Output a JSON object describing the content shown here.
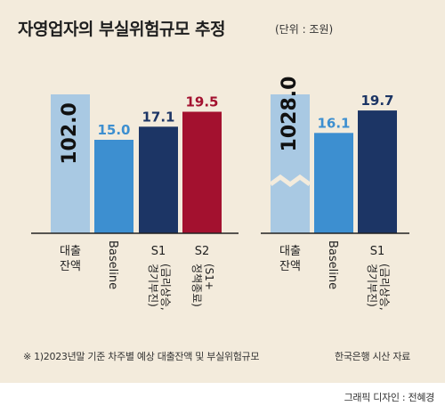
{
  "title": "자영업자의 부실위험규모 추정",
  "unit": "(단위 : 조원)",
  "footnote": "※ 1)2023년말 기준 차주별 예상 대출잔액 및 부실위험규모",
  "source": "한국은행 시산 자료",
  "credit": "그래픽 디자인 : 전혜경",
  "colors": {
    "background": "#f3ebdc",
    "loan": "#a9c9e3",
    "baseline": "#3d8fd0",
    "s1": "#1c3565",
    "s2": "#a3112f"
  },
  "chart_data": [
    {
      "type": "bar",
      "axis_break": true,
      "categories": [
        "대출\n잔액",
        "Baseline",
        "S1\n(금리상승,\n경기부진)",
        "S2\n(S1+\n정책종료)"
      ],
      "values": [
        102.0,
        15.0,
        17.1,
        19.5
      ],
      "value_labels": [
        "102.0",
        "15.0",
        "17.1",
        "19.5"
      ],
      "bar_colors": [
        "loan",
        "baseline",
        "s1",
        "s2"
      ]
    },
    {
      "type": "bar",
      "axis_break": true,
      "categories": [
        "대출\n잔액",
        "Baseline",
        "S1\n(금리상승,\n경기부진)"
      ],
      "values": [
        1028.0,
        16.1,
        19.7
      ],
      "value_labels": [
        "1028.0",
        "16.1",
        "19.7"
      ],
      "bar_colors": [
        "loan",
        "baseline",
        "s1"
      ]
    }
  ]
}
